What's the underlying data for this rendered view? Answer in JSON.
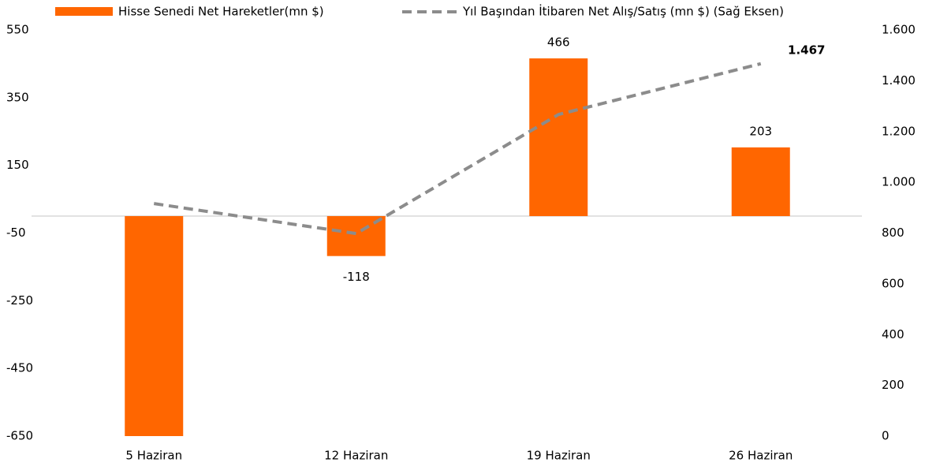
{
  "chart_data": {
    "type": "bar-line",
    "categories": [
      "5 Haziran",
      "12 Haziran",
      "19 Haziran",
      "26 Haziran"
    ],
    "series": [
      {
        "name": "Hisse Senedi Net Hareketler(mn $)",
        "color": "#ff6600",
        "type": "bar",
        "axis": "y",
        "values": [
          -650,
          -118,
          466,
          203
        ],
        "value_labels": [
          null,
          "-118",
          "466",
          "203"
        ]
      },
      {
        "name": "Yıl Başından İtibaren Net Alış/Satış (mn $) (Sağ Eksen)",
        "color": "#8c8c8c",
        "type": "line",
        "dashed": true,
        "axis": "y2",
        "values": [
          916,
          798,
          1267,
          1467
        ],
        "value_labels": [
          null,
          null,
          null,
          "1.467"
        ]
      }
    ],
    "ylim": [
      -650,
      550
    ],
    "yticks": [
      550,
      350,
      150,
      -50,
      -250,
      -450,
      -650
    ],
    "y2lim": [
      0,
      1600
    ],
    "y2ticks": [
      {
        "value": 1600,
        "label": "1.600"
      },
      {
        "value": 1400,
        "label": "1.400"
      },
      {
        "value": 1200,
        "label": "1.200"
      },
      {
        "value": 1000,
        "label": "1.000"
      },
      800,
      600,
      400,
      200,
      0
    ],
    "legend": "top"
  }
}
